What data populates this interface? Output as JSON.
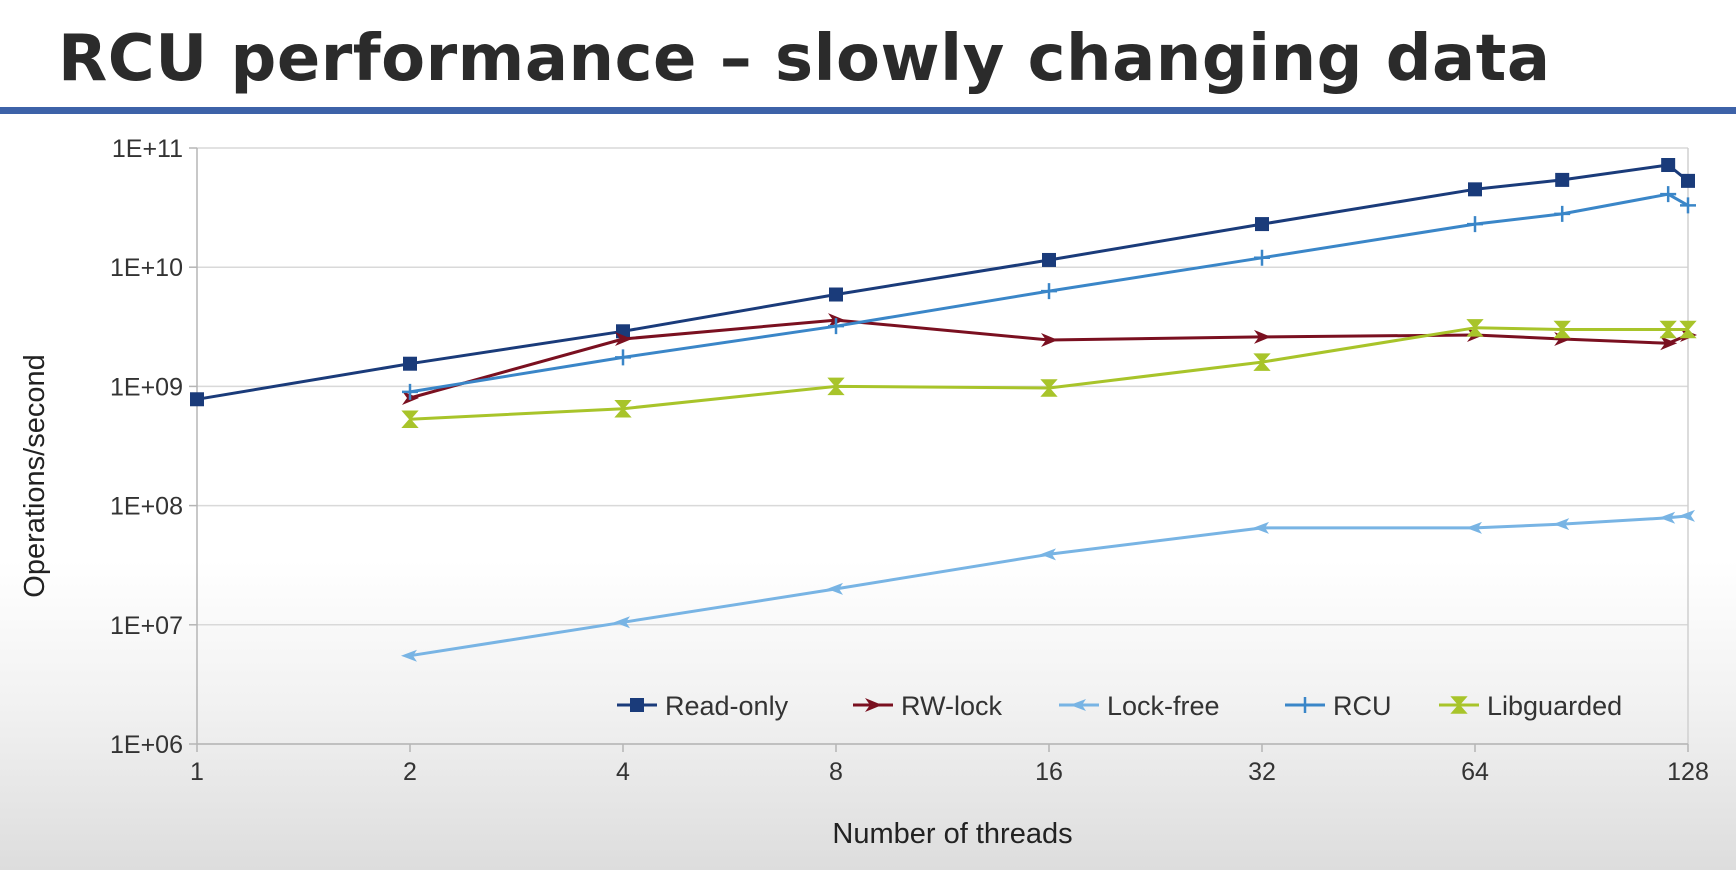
{
  "slide": {
    "title": "RCU performance – slowly changing data"
  },
  "chart_data": {
    "type": "line",
    "title": "",
    "xlabel": "Number of threads",
    "ylabel": "Operations/second",
    "x_scale": "log2",
    "y_scale": "log10",
    "xlim": [
      1,
      128
    ],
    "ylim": [
      1000000,
      100000000000
    ],
    "x_ticks": [
      1,
      2,
      4,
      8,
      16,
      32,
      64,
      128
    ],
    "x_tick_labels": [
      "1",
      "2",
      "4",
      "8",
      "16",
      "32",
      "64",
      "128"
    ],
    "y_ticks": [
      1000000,
      10000000,
      100000000,
      1000000000,
      10000000000,
      100000000000
    ],
    "y_tick_labels": [
      "1E+06",
      "1E+07",
      "1E+08",
      "1E+09",
      "1E+10",
      "1E+11"
    ],
    "grid": "horizontal",
    "legend_position": "bottom-right, inside plot",
    "series": [
      {
        "name": "Read-only",
        "color": "#1a3b7a",
        "marker": "square",
        "x": [
          1,
          2,
          4,
          8,
          16,
          32,
          64,
          85,
          120,
          128
        ],
        "y": [
          780000000,
          1550000000,
          2900000000,
          5900000000,
          11500000000,
          23000000000,
          45000000000,
          54000000000,
          72000000000,
          53000000000
        ]
      },
      {
        "name": "RW-lock",
        "color": "#7a1020",
        "marker": "arrow",
        "x": [
          2,
          4,
          8,
          16,
          32,
          64,
          85,
          120,
          128
        ],
        "y": [
          800000000,
          2500000000,
          3600000000,
          2450000000,
          2600000000,
          2700000000,
          2500000000,
          2300000000,
          2700000000
        ]
      },
      {
        "name": "Lock-free",
        "color": "#78b4e4",
        "marker": "diamond-arrow",
        "x": [
          2,
          4,
          8,
          16,
          32,
          64,
          85,
          120,
          128
        ],
        "y": [
          5500000,
          10500000,
          20000000,
          39000000,
          65000000,
          65000000,
          70000000,
          79000000,
          82000000
        ]
      },
      {
        "name": "RCU",
        "color": "#3a86c8",
        "marker": "plus",
        "x": [
          2,
          4,
          8,
          16,
          32,
          64,
          85,
          120,
          128
        ],
        "y": [
          900000000,
          1750000000,
          3200000000,
          6300000000,
          12000000000,
          23000000000,
          28000000000,
          41000000000,
          33000000000
        ]
      },
      {
        "name": "Libguarded",
        "color": "#a8c42a",
        "marker": "bowtie",
        "x": [
          2,
          4,
          8,
          16,
          32,
          64,
          85,
          120,
          128
        ],
        "y": [
          530000000,
          650000000,
          1000000000,
          970000000,
          1600000000,
          3100000000,
          3000000000,
          3000000000,
          3000000000
        ]
      }
    ]
  }
}
